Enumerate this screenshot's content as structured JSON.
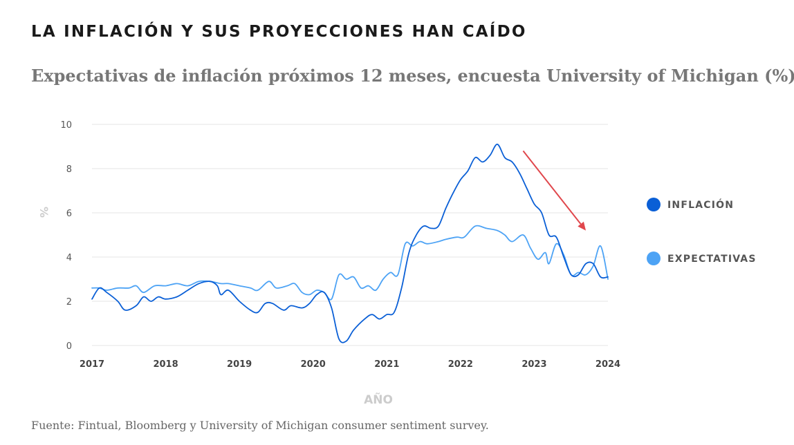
{
  "title": "LA INFLACIÓN Y SUS PROYECCIONES HAN CAÍDO",
  "subtitle": "Expectativas de inflación próximos 12 meses, encuesta University of Michigan (%)",
  "source": "Fuente: Fintual, Bloomberg y University of Michigan consumer sentiment survey.",
  "colors": {
    "inflacion": "#0A5FD6",
    "expectativas": "#4DA3F5",
    "arrow": "#E0474C",
    "grid": "#e6e6e6"
  },
  "chart_data": {
    "type": "line",
    "title": "LA INFLACIÓN Y SUS PROYECCIONES HAN CAÍDO",
    "xlabel": "AÑO",
    "ylabel": "%",
    "xlim": [
      2017,
      2024
    ],
    "ylim": [
      0,
      10
    ],
    "xticks": [
      "2017",
      "2018",
      "2019",
      "2020",
      "2021",
      "2022",
      "2023",
      "2024"
    ],
    "yticks": [
      "0",
      "2",
      "4",
      "6",
      "8",
      "10"
    ],
    "grid": "horizontal",
    "legend_position": "right",
    "series": [
      {
        "name": "INFLACIÓN",
        "color_key": "inflacion",
        "points": [
          [
            2017.0,
            2.1
          ],
          [
            2017.1,
            2.6
          ],
          [
            2017.2,
            2.4
          ],
          [
            2017.35,
            2.0
          ],
          [
            2017.45,
            1.6
          ],
          [
            2017.6,
            1.8
          ],
          [
            2017.7,
            2.2
          ],
          [
            2017.8,
            2.0
          ],
          [
            2017.9,
            2.2
          ],
          [
            2018.0,
            2.1
          ],
          [
            2018.15,
            2.2
          ],
          [
            2018.3,
            2.5
          ],
          [
            2018.45,
            2.8
          ],
          [
            2018.6,
            2.9
          ],
          [
            2018.7,
            2.7
          ],
          [
            2018.75,
            2.3
          ],
          [
            2018.85,
            2.5
          ],
          [
            2019.0,
            2.0
          ],
          [
            2019.15,
            1.6
          ],
          [
            2019.25,
            1.5
          ],
          [
            2019.35,
            1.9
          ],
          [
            2019.45,
            1.9
          ],
          [
            2019.6,
            1.6
          ],
          [
            2019.7,
            1.8
          ],
          [
            2019.85,
            1.7
          ],
          [
            2019.95,
            1.9
          ],
          [
            2020.05,
            2.3
          ],
          [
            2020.15,
            2.4
          ],
          [
            2020.25,
            1.7
          ],
          [
            2020.35,
            0.3
          ],
          [
            2020.45,
            0.2
          ],
          [
            2020.55,
            0.7
          ],
          [
            2020.7,
            1.2
          ],
          [
            2020.8,
            1.4
          ],
          [
            2020.9,
            1.2
          ],
          [
            2021.0,
            1.4
          ],
          [
            2021.1,
            1.5
          ],
          [
            2021.2,
            2.6
          ],
          [
            2021.3,
            4.2
          ],
          [
            2021.4,
            5.0
          ],
          [
            2021.5,
            5.4
          ],
          [
            2021.6,
            5.3
          ],
          [
            2021.7,
            5.4
          ],
          [
            2021.8,
            6.2
          ],
          [
            2021.9,
            6.9
          ],
          [
            2022.0,
            7.5
          ],
          [
            2022.1,
            7.9
          ],
          [
            2022.2,
            8.5
          ],
          [
            2022.3,
            8.3
          ],
          [
            2022.4,
            8.6
          ],
          [
            2022.5,
            9.1
          ],
          [
            2022.6,
            8.5
          ],
          [
            2022.7,
            8.3
          ],
          [
            2022.8,
            7.8
          ],
          [
            2022.9,
            7.1
          ],
          [
            2023.0,
            6.4
          ],
          [
            2023.1,
            6.0
          ],
          [
            2023.2,
            5.0
          ],
          [
            2023.3,
            4.9
          ],
          [
            2023.4,
            4.0
          ],
          [
            2023.5,
            3.2
          ],
          [
            2023.6,
            3.2
          ],
          [
            2023.7,
            3.7
          ],
          [
            2023.8,
            3.7
          ],
          [
            2023.9,
            3.1
          ],
          [
            2024.0,
            3.1
          ]
        ]
      },
      {
        "name": "EXPECTATIVAS",
        "color_key": "expectativas",
        "points": [
          [
            2017.0,
            2.6
          ],
          [
            2017.1,
            2.6
          ],
          [
            2017.2,
            2.5
          ],
          [
            2017.35,
            2.6
          ],
          [
            2017.5,
            2.6
          ],
          [
            2017.6,
            2.7
          ],
          [
            2017.7,
            2.4
          ],
          [
            2017.85,
            2.7
          ],
          [
            2018.0,
            2.7
          ],
          [
            2018.15,
            2.8
          ],
          [
            2018.3,
            2.7
          ],
          [
            2018.45,
            2.9
          ],
          [
            2018.6,
            2.9
          ],
          [
            2018.75,
            2.8
          ],
          [
            2018.85,
            2.8
          ],
          [
            2019.0,
            2.7
          ],
          [
            2019.15,
            2.6
          ],
          [
            2019.25,
            2.5
          ],
          [
            2019.4,
            2.9
          ],
          [
            2019.5,
            2.6
          ],
          [
            2019.65,
            2.7
          ],
          [
            2019.75,
            2.8
          ],
          [
            2019.85,
            2.4
          ],
          [
            2019.95,
            2.3
          ],
          [
            2020.05,
            2.5
          ],
          [
            2020.15,
            2.4
          ],
          [
            2020.25,
            2.1
          ],
          [
            2020.35,
            3.2
          ],
          [
            2020.45,
            3.0
          ],
          [
            2020.55,
            3.1
          ],
          [
            2020.65,
            2.6
          ],
          [
            2020.75,
            2.7
          ],
          [
            2020.85,
            2.5
          ],
          [
            2020.95,
            3.0
          ],
          [
            2021.05,
            3.3
          ],
          [
            2021.15,
            3.2
          ],
          [
            2021.25,
            4.6
          ],
          [
            2021.35,
            4.5
          ],
          [
            2021.45,
            4.7
          ],
          [
            2021.55,
            4.6
          ],
          [
            2021.7,
            4.7
          ],
          [
            2021.8,
            4.8
          ],
          [
            2021.95,
            4.9
          ],
          [
            2022.05,
            4.9
          ],
          [
            2022.2,
            5.4
          ],
          [
            2022.35,
            5.3
          ],
          [
            2022.5,
            5.2
          ],
          [
            2022.6,
            5.0
          ],
          [
            2022.7,
            4.7
          ],
          [
            2022.85,
            5.0
          ],
          [
            2022.95,
            4.4
          ],
          [
            2023.05,
            3.9
          ],
          [
            2023.15,
            4.2
          ],
          [
            2023.2,
            3.7
          ],
          [
            2023.3,
            4.6
          ],
          [
            2023.4,
            4.1
          ],
          [
            2023.5,
            3.2
          ],
          [
            2023.6,
            3.3
          ],
          [
            2023.7,
            3.2
          ],
          [
            2023.8,
            3.6
          ],
          [
            2023.9,
            4.5
          ],
          [
            2024.0,
            3.0
          ]
        ]
      }
    ],
    "annotations": [
      {
        "type": "arrow",
        "from": [
          2022.85,
          8.8
        ],
        "to": [
          2023.7,
          5.2
        ],
        "color_key": "arrow"
      }
    ]
  }
}
